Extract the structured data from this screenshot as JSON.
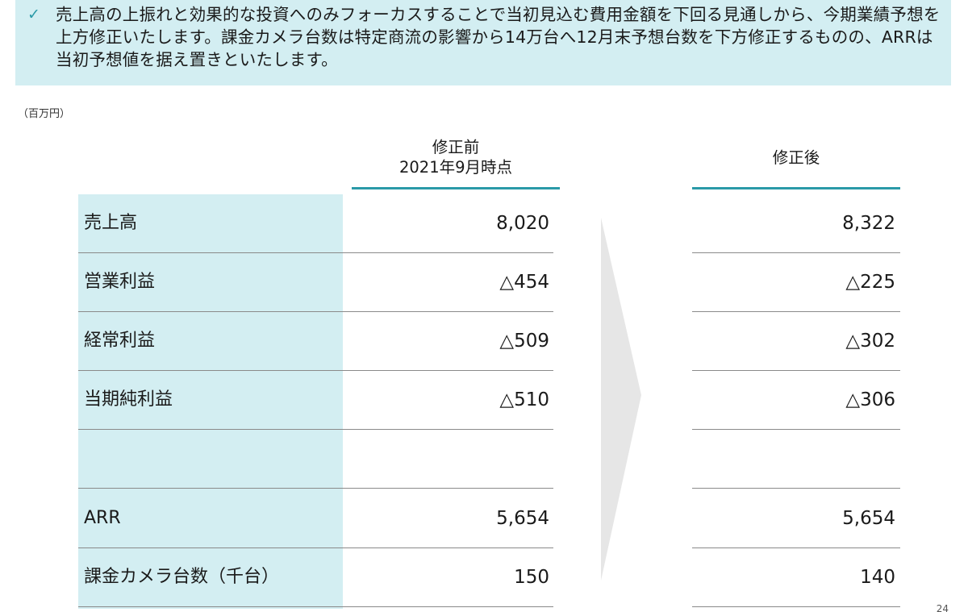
{
  "callout": {
    "check": "✓",
    "text": "売上高の上振れと効果的な投資へのみフォーカスすることで当初見込む費用金額を下回る見通しから、今期業績予想を上方修正いたします。課金カメラ台数は特定商流の影響から14万台へ12月末予想台数を下方修正するものの、ARRは当初予想値を据え置きといたします。"
  },
  "unit": "（百万円）",
  "headers": {
    "before_line1": "修正前",
    "before_line2": "2021年9月時点",
    "after": "修正後"
  },
  "rows": [
    {
      "label": "売上高",
      "before": "8,020",
      "after": "8,322"
    },
    {
      "label": "営業利益",
      "before": "△454",
      "after": "△225"
    },
    {
      "label": "経常利益",
      "before": "△509",
      "after": "△302"
    },
    {
      "label": "当期純利益",
      "before": "△510",
      "after": "△306"
    },
    {
      "label": "",
      "before": "",
      "after": ""
    },
    {
      "label": "ARR",
      "before": "5,654",
      "after": "5,654"
    },
    {
      "label": "課金カメラ台数（千台）",
      "before": "150",
      "after": "140"
    }
  ],
  "colors": {
    "accent": "#2a9aa8",
    "callout_bg": "#d3eef2",
    "arrow": "#e6e6e6"
  },
  "page_number": "24"
}
